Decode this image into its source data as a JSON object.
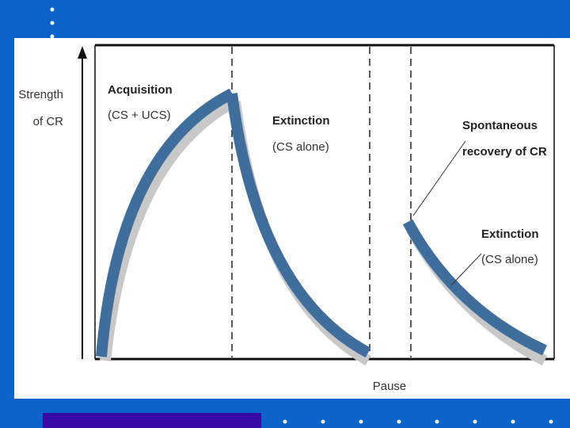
{
  "y_axis_label": [
    "Strength",
    "of CR"
  ],
  "annotations": [
    {
      "title": "Acquisition",
      "detail": "(CS + UCS)"
    },
    {
      "title": "Extinction",
      "detail": "(CS alone)"
    },
    {
      "title": "Spontaneous",
      "detail": "recovery of CR"
    },
    {
      "title": "Extinction",
      "detail": "(CS alone)"
    }
  ],
  "x_axis_label": "Pause"
}
